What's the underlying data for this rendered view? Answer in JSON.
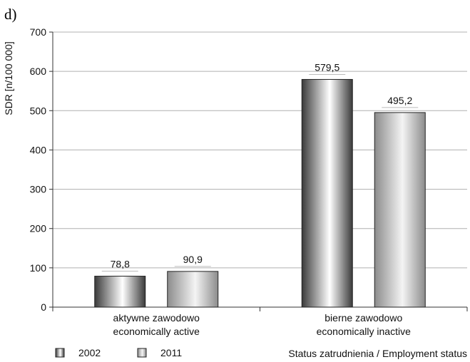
{
  "panel_label": "d)",
  "colors": {
    "series_2002_dark": "#3a3a3a",
    "series_2002_light": "#ffffff",
    "series_2011_dark": "#8c8c8c",
    "series_2011_light": "#f4f4f4",
    "grid": "#b0b0b0",
    "axis": "#333333"
  },
  "chart_data": {
    "type": "bar",
    "ylabel": "SDR [n/100 000]",
    "xlabel": "Status zatrudnienia / Employment status",
    "ylim": [
      0,
      700
    ],
    "yticks": [
      "0",
      "100",
      "200",
      "300",
      "400",
      "500",
      "600",
      "700"
    ],
    "grid": true,
    "legend_position": "bottom-left",
    "categories": [
      [
        "aktywne zawodowo",
        "economically active"
      ],
      [
        "bierne zawodowo",
        "economically inactive"
      ]
    ],
    "series": [
      {
        "name": "2002",
        "values": [
          78.8,
          579.5
        ],
        "labels": [
          "78,8",
          "579,5"
        ]
      },
      {
        "name": "2011",
        "values": [
          90.9,
          495.2
        ],
        "labels": [
          "90,9",
          "495,2"
        ]
      }
    ]
  }
}
